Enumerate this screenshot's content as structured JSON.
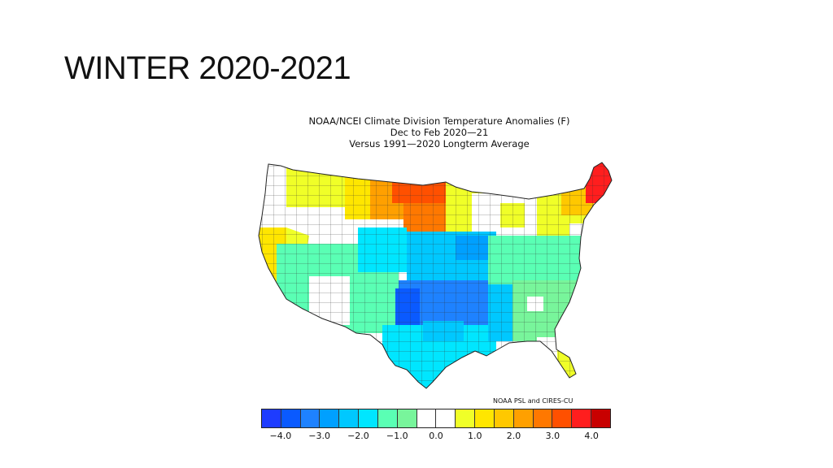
{
  "slide": {
    "title": "WINTER 2020-2021"
  },
  "map": {
    "title_lines": [
      "NOAA/NCEI Climate Division Temperature Anomalies (F)",
      "Dec to Feb 2020—21",
      "Versus 1991—2020 Longterm Average"
    ],
    "credit": "NOAA PSL and CIRES-CU",
    "colors": {
      "-4.0": "#1e3cff",
      "-3.5": "#0a5aff",
      "-3.0": "#1e82ff",
      "-2.5": "#00a0ff",
      "-2.0": "#00c8ff",
      "-1.5": "#00e6ff",
      "-1.0": "#5affb4",
      "-0.5": "#78f59b",
      "0.0": "#ffffff",
      "0.5": "#ffffff",
      "1.0": "#f0ff28",
      "1.5": "#ffe600",
      "2.0": "#ffc800",
      "2.5": "#ffa000",
      "3.0": "#ff7800",
      "3.5": "#ff5000",
      "4.0": "#ff1e1e",
      "4.5": "#c80000"
    },
    "colorbar": {
      "colors": [
        "#1e3cff",
        "#0a5aff",
        "#1e82ff",
        "#00a0ff",
        "#00c8ff",
        "#00e6ff",
        "#5affb4",
        "#78f59b",
        "#ffffff",
        "#ffffff",
        "#f0ff28",
        "#ffe600",
        "#ffc800",
        "#ffa000",
        "#ff7800",
        "#ff5000",
        "#ff1e1e",
        "#c80000"
      ],
      "ticks": [
        "−4.0",
        "−3.0",
        "−2.0",
        "−1.0",
        "0.0",
        "1.0",
        "2.0",
        "3.0",
        "4.0"
      ]
    },
    "region_anomalies": {
      "northwest_coast": "0.0",
      "california_coast": "1.5",
      "nevada": "1.0",
      "intermountain": "0.0",
      "northern_rockies": "1.0",
      "montana_east": "2.5",
      "north_dakota": "3.5",
      "south_dakota": "3.0",
      "upper_midwest": "1.0",
      "great_lakes": "1.0",
      "new_england": "2.5",
      "maine": "4.0",
      "central_plains": "-2.0",
      "southern_plains": "-3.0",
      "texas": "-1.5",
      "southwest": "-1.0",
      "ohio_valley": "-1.0",
      "southeast": "-0.5",
      "florida": "0.0",
      "florida_south": "1.0"
    }
  }
}
